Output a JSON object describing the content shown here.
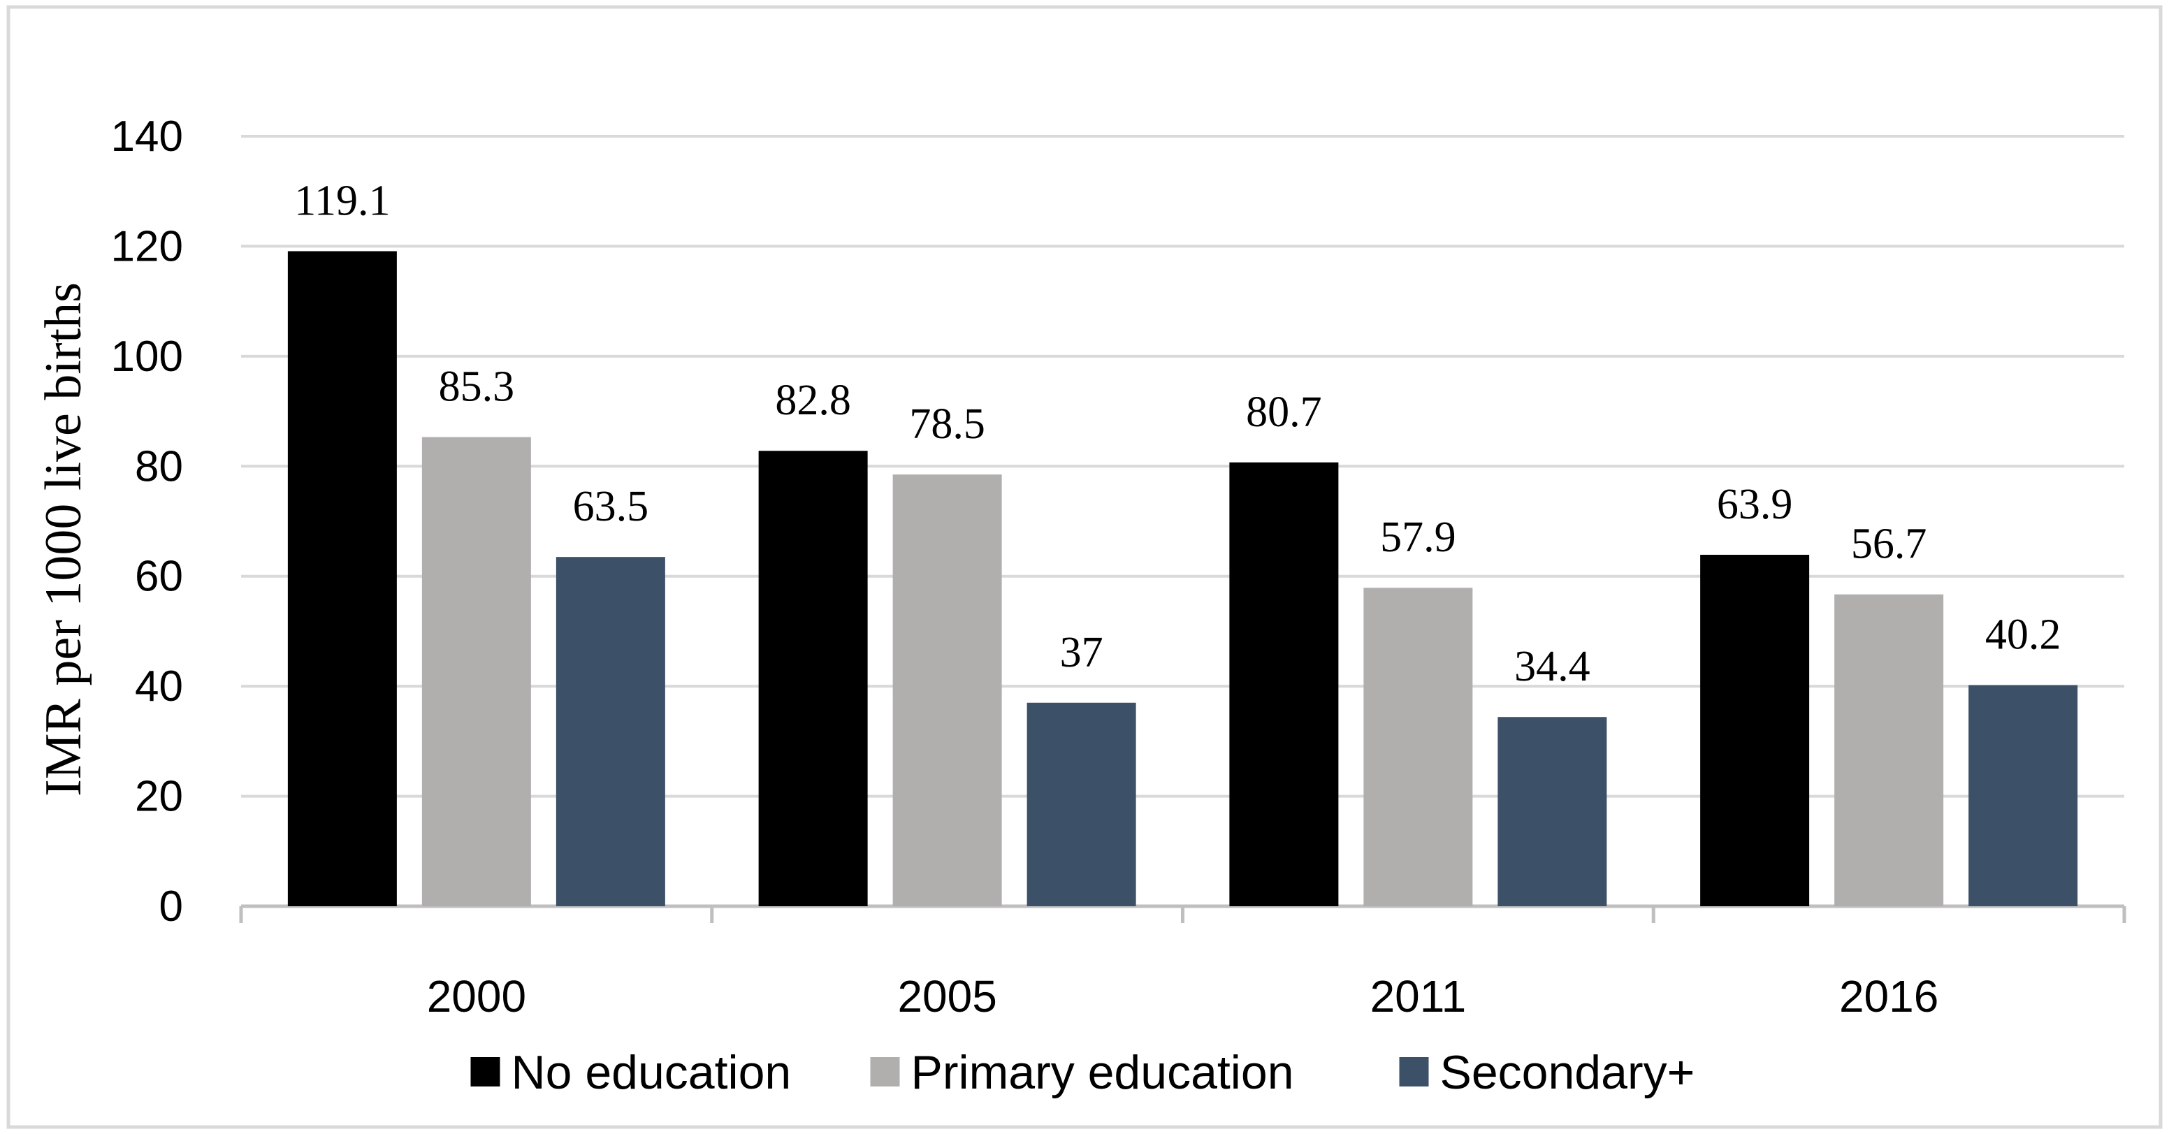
{
  "chart_data": {
    "type": "bar",
    "title": "",
    "xlabel": "",
    "ylabel": "IMR per 1000 live births",
    "ylim": [
      0,
      140
    ],
    "yticks": [
      0,
      20,
      40,
      60,
      80,
      100,
      120,
      140
    ],
    "grid": true,
    "legend_position": "bottom",
    "categories": [
      "2000",
      "2005",
      "2011",
      "2016"
    ],
    "series": [
      {
        "name": "No education",
        "color": "#000000",
        "values": [
          119.1,
          82.8,
          80.7,
          63.9
        ]
      },
      {
        "name": "Primary education",
        "color": "#b1afae",
        "values": [
          85.3,
          78.5,
          57.9,
          56.7
        ]
      },
      {
        "name": "Secondary+",
        "color": "#3c5068",
        "values": [
          63.5,
          37,
          34.4,
          40.2
        ]
      }
    ]
  }
}
